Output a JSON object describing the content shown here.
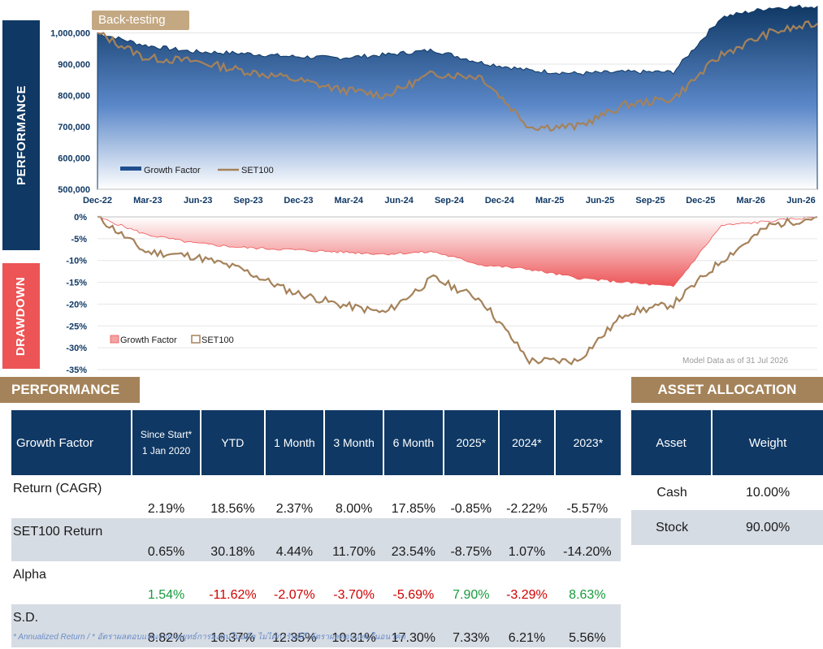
{
  "side_tabs": {
    "performance": "PERFORMANCE",
    "drawdown": "DRAWDOWN"
  },
  "backtest_label": "Back-testing",
  "model_note": "Model Data as of 31 Jul 2026",
  "colors": {
    "navy": "#0f3864",
    "gold": "#a5835a",
    "set100_line": "#a5825a",
    "drawdown_red": "#ec5456",
    "positive": "#169b3c",
    "negative": "#d00000"
  },
  "chart_data": [
    {
      "type": "area",
      "title": "",
      "x": [
        "Dec-22",
        "Mar-23",
        "Jun-23",
        "Sep-23",
        "Dec-23",
        "Mar-24",
        "Jun-24",
        "Sep-24",
        "Dec-24",
        "Mar-25",
        "Jun-25",
        "Sep-25",
        "Dec-25",
        "Mar-26",
        "Jun-26",
        "Jul-26"
      ],
      "x_ticks": [
        "Dec-22",
        "Mar-23",
        "Jun-23",
        "Sep-23",
        "Dec-23",
        "Mar-24",
        "Jun-24",
        "Sep-24",
        "Dec-24",
        "Mar-25",
        "Jun-25",
        "Sep-25",
        "Dec-25",
        "Mar-26",
        "Jun-26"
      ],
      "ylim": [
        500000,
        1100000
      ],
      "y_ticks": [
        "500,000",
        "600,000",
        "700,000",
        "800,000",
        "900,000",
        "1,000,000"
      ],
      "grid": true,
      "legend": "bottom-left",
      "series": [
        {
          "name": "Growth Factor",
          "style": "area",
          "values": [
            1000000,
            960000,
            940000,
            935000,
            925000,
            920000,
            930000,
            945000,
            905000,
            880000,
            870000,
            875000,
            875000,
            1050000,
            1080000,
            1085000
          ]
        },
        {
          "name": "SET100",
          "style": "line",
          "values": [
            1000000,
            920000,
            910000,
            880000,
            855000,
            820000,
            800000,
            870000,
            860000,
            700000,
            700000,
            770000,
            790000,
            930000,
            1000000,
            1030000
          ]
        }
      ]
    },
    {
      "type": "area",
      "title": "",
      "x": [
        "Dec-22",
        "Mar-23",
        "Jun-23",
        "Sep-23",
        "Dec-23",
        "Mar-24",
        "Jun-24",
        "Sep-24",
        "Dec-24",
        "Mar-25",
        "Jun-25",
        "Sep-25",
        "Dec-25",
        "Mar-26",
        "Jun-26",
        "Jul-26"
      ],
      "ylim": [
        -35,
        0
      ],
      "y_ticks": [
        "0%",
        "-5%",
        "-10%",
        "-15%",
        "-20%",
        "-25%",
        "-30%",
        "-35%"
      ],
      "legend": "bottom-left",
      "series": [
        {
          "name": "Growth Factor",
          "style": "area",
          "values": [
            0,
            -4,
            -6,
            -7,
            -7.5,
            -8,
            -8.5,
            -8,
            -11,
            -12,
            -14,
            -15,
            -16,
            -2,
            -1,
            0
          ]
        },
        {
          "name": "SET100",
          "style": "line",
          "values": [
            0,
            -8,
            -9,
            -12,
            -17,
            -20,
            -22,
            -14,
            -19,
            -33,
            -33,
            -22,
            -20,
            -10,
            -2,
            0
          ]
        }
      ]
    }
  ],
  "performance": {
    "banner": "PERFORMANCE",
    "corner": "Growth Factor",
    "headers": [
      {
        "line1": "Since Start*",
        "line2": "1 Jan 2020"
      },
      {
        "line1": "YTD"
      },
      {
        "line1": "1 Month"
      },
      {
        "line1": "3 Month"
      },
      {
        "line1": "6 Month"
      },
      {
        "line1": "2025*"
      },
      {
        "line1": "2024*"
      },
      {
        "line1": "2023*"
      }
    ],
    "rows": [
      {
        "label": "Return (CAGR)",
        "values": [
          "2.19%",
          "18.56%",
          "2.37%",
          "8.00%",
          "17.85%",
          "-0.85%",
          "-2.22%",
          "-5.57%"
        ]
      },
      {
        "label": "SET100 Return",
        "values": [
          "0.65%",
          "30.18%",
          "4.44%",
          "11.70%",
          "23.54%",
          "-8.75%",
          "1.07%",
          "-14.20%"
        ]
      },
      {
        "label": "Alpha",
        "values": [
          "1.54%",
          "-11.62%",
          "-2.07%",
          "-3.70%",
          "-5.69%",
          "7.90%",
          "-3.29%",
          "8.63%"
        ]
      },
      {
        "label": "S.D.",
        "values": [
          "8.82%",
          "16.37%",
          "12.35%",
          "10.31%",
          "17.30%",
          "7.33%",
          "6.21%",
          "5.56%"
        ]
      }
    ]
  },
  "allocation": {
    "banner": "ASSET ALLOCATION",
    "headers": [
      "Asset",
      "Weight"
    ],
    "rows": [
      {
        "asset": "Cash",
        "weight": "10.00%"
      },
      {
        "asset": "Stock",
        "weight": "90.00%"
      }
    ]
  },
  "footnote": "* Annualized Return  /  * อัตราผลตอบแทนจากกลยุทธ์การลงทุนในอดีต ไม่ได้การันตีถึงอัตราผลตอบแทนในอนาคต"
}
